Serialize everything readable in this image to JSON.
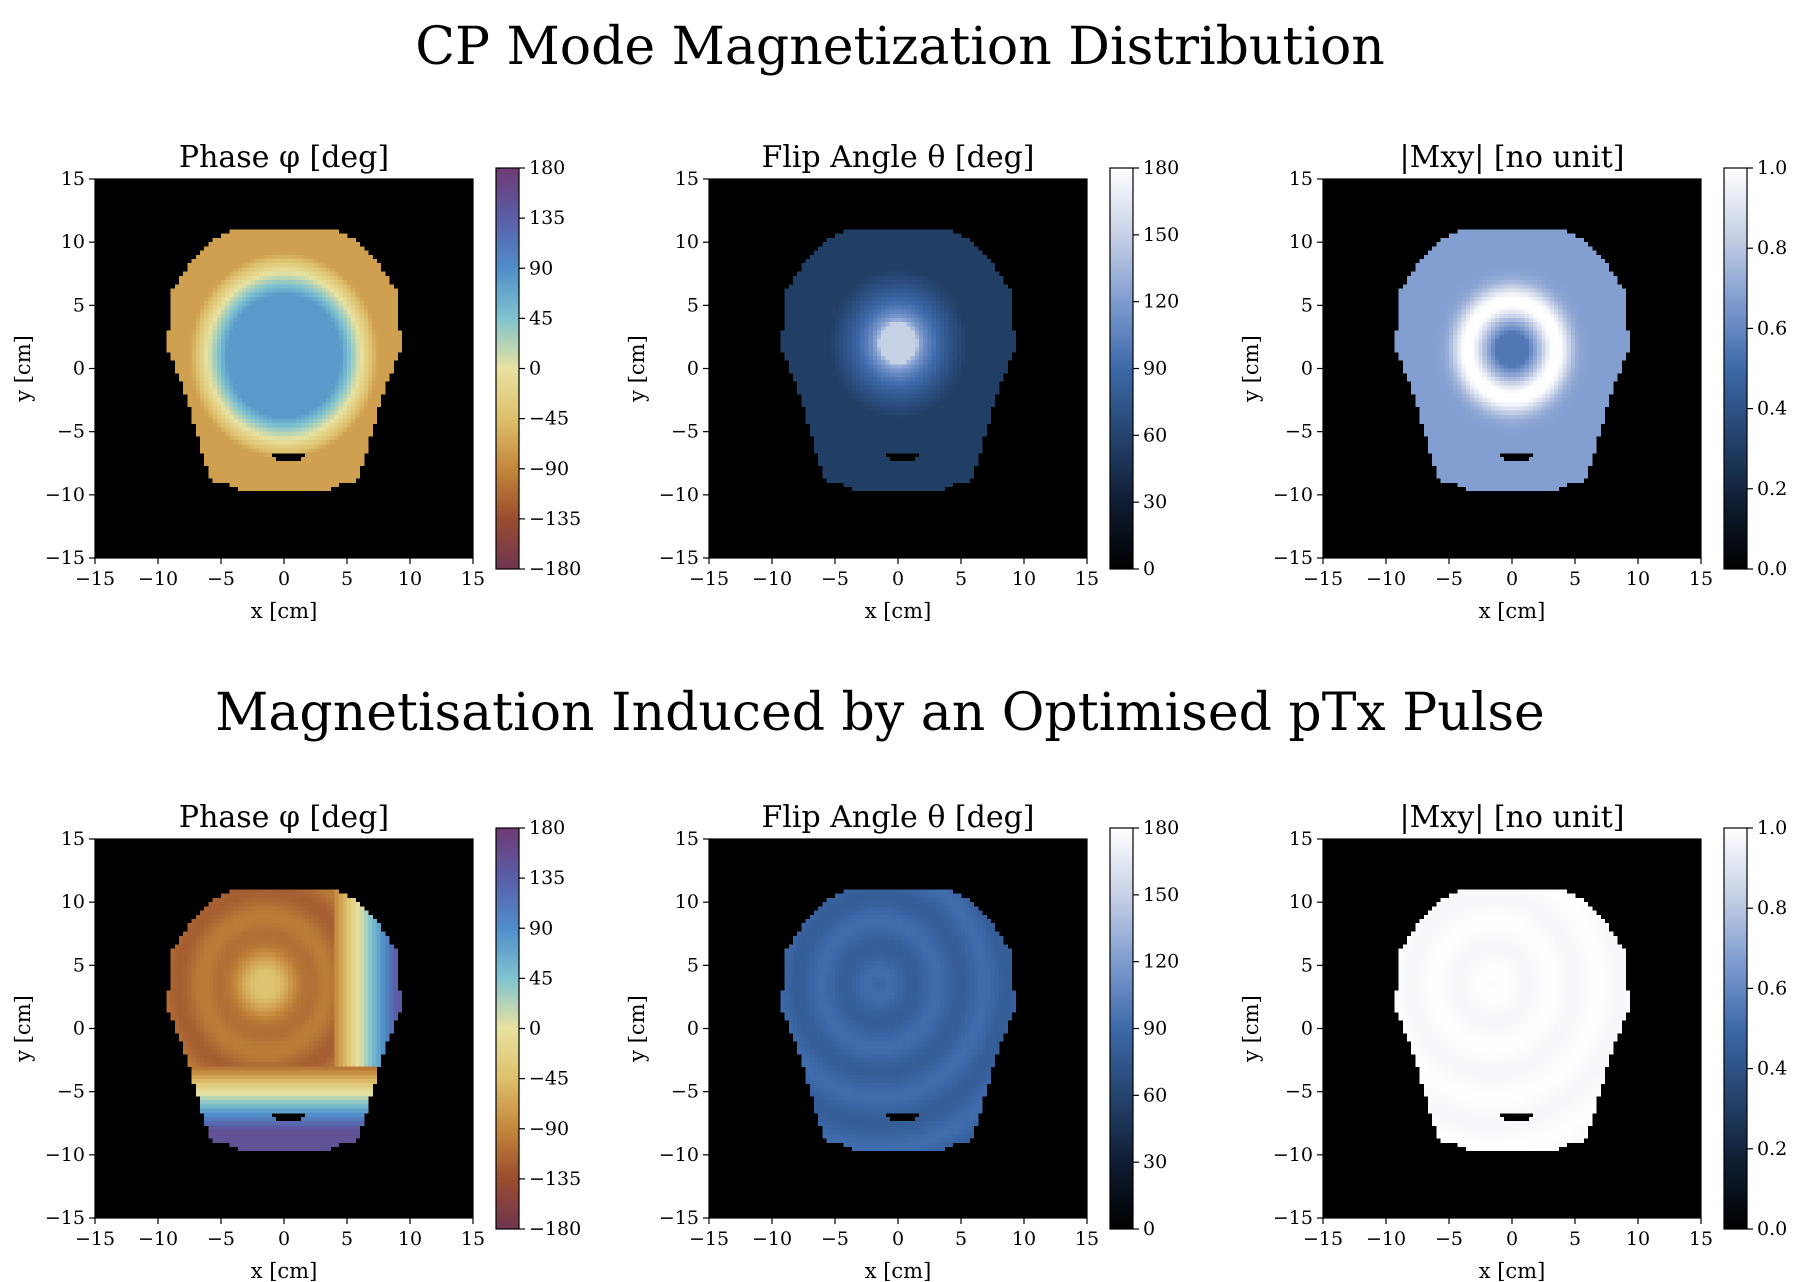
{
  "figure_titles": [
    "CP Mode Magnetization Distribution",
    "Magnetisation Induced by an Optimised pTx Pulse"
  ],
  "chart_data": [
    {
      "type": "heatmap",
      "row": 0,
      "title": "Phase φ [deg]",
      "xlabel": "x [cm]",
      "ylabel": "y [cm]",
      "xlim": [
        -15,
        15
      ],
      "ylim": [
        -15,
        15
      ],
      "xticks": [
        "−15",
        "−10",
        "−5",
        "0",
        "5",
        "10",
        "15"
      ],
      "yticks": [
        "15",
        "10",
        "5",
        "0",
        "−5",
        "−10",
        "−15"
      ],
      "colorbar": {
        "min": -180,
        "max": 180,
        "ticks": [
          "180",
          "135",
          "90",
          "45",
          "0",
          "−45",
          "−90",
          "−135",
          "−180"
        ],
        "colors": [
          "#6e3550",
          "#9a4d2e",
          "#c4873a",
          "#ddc06c",
          "#e8e2a0",
          "#7fc3cf",
          "#4f8ec9",
          "#5a5ea8",
          "#6e3a72"
        ]
      },
      "background_value": "black",
      "field": {
        "center": [
          0,
          1
        ],
        "core_value": 80,
        "edge_value": -70,
        "core_radius_cm": 4.5,
        "falloff_cm": 3.0
      }
    },
    {
      "type": "heatmap",
      "row": 0,
      "title": "Flip Angle θ [deg]",
      "xlabel": "x [cm]",
      "ylabel": "y [cm]",
      "xlim": [
        -15,
        15
      ],
      "ylim": [
        -15,
        15
      ],
      "xticks": [
        "−15",
        "−10",
        "−5",
        "0",
        "5",
        "10",
        "15"
      ],
      "yticks": [
        "15",
        "10",
        "5",
        "0",
        "−5",
        "−10",
        "−15"
      ],
      "colorbar": {
        "min": 0,
        "max": 180,
        "ticks": [
          "180",
          "150",
          "120",
          "90",
          "60",
          "30",
          "0"
        ],
        "colors": [
          "#000000",
          "#0f1d33",
          "#25446f",
          "#3d69aa",
          "#7f9cd0",
          "#c7d1e6",
          "#ffffff"
        ]
      },
      "background_value": "black",
      "field": {
        "center": [
          0,
          2
        ],
        "core_value": 150,
        "edge_value": 55,
        "core_radius_cm": 1.5,
        "falloff_cm": 4.0
      }
    },
    {
      "type": "heatmap",
      "row": 0,
      "title": "|Mxy| [no unit]",
      "xlabel": "x [cm]",
      "ylabel": "y [cm]",
      "xlim": [
        -15,
        15
      ],
      "ylim": [
        -15,
        15
      ],
      "xticks": [
        "−15",
        "−10",
        "−5",
        "0",
        "5",
        "10",
        "15"
      ],
      "yticks": [
        "15",
        "10",
        "5",
        "0",
        "−5",
        "−10",
        "−15"
      ],
      "colorbar": {
        "min": 0.0,
        "max": 1.0,
        "ticks": [
          "1.0",
          "0.8",
          "0.6",
          "0.4",
          "0.2",
          "0.0"
        ],
        "colors": [
          "#000000",
          "#0f1d33",
          "#25446f",
          "#3d69aa",
          "#7f9cd0",
          "#c7d1e6",
          "#ffffff"
        ]
      },
      "background_value": "black",
      "field": {
        "center": [
          0,
          1.5
        ],
        "core_value": 0.45,
        "ring_value": 1.0,
        "ring_radius_cm": 3.5,
        "edge_value": 0.75
      }
    },
    {
      "type": "heatmap",
      "row": 1,
      "title": "Phase φ [deg]",
      "xlabel": "x [cm]",
      "ylabel": "y [cm]",
      "xlim": [
        -15,
        15
      ],
      "ylim": [
        -15,
        15
      ],
      "xticks": [
        "−15",
        "−10",
        "−5",
        "0",
        "5",
        "10",
        "15"
      ],
      "yticks": [
        "15",
        "10",
        "5",
        "0",
        "−5",
        "−10",
        "−15"
      ],
      "colorbar": {
        "min": -180,
        "max": 180,
        "ticks": [
          "180",
          "135",
          "90",
          "45",
          "0",
          "−45",
          "−90",
          "−135",
          "−180"
        ],
        "colors": [
          "#6e3550",
          "#9a4d2e",
          "#c4873a",
          "#ddc06c",
          "#e8e2a0",
          "#7fc3cf",
          "#4f8ec9",
          "#5a5ea8",
          "#6e3a72"
        ]
      },
      "background_value": "black",
      "field": {
        "center": [
          -1.5,
          3.5
        ],
        "core_value": -40,
        "edge_value": -110,
        "lower_value": 140
      }
    },
    {
      "type": "heatmap",
      "row": 1,
      "title": "Flip Angle θ [deg]",
      "xlabel": "x [cm]",
      "ylabel": "y [cm]",
      "xlim": [
        -15,
        15
      ],
      "ylim": [
        -15,
        15
      ],
      "xticks": [
        "−15",
        "−10",
        "−5",
        "0",
        "5",
        "10",
        "15"
      ],
      "yticks": [
        "15",
        "10",
        "5",
        "0",
        "−5",
        "−10",
        "−15"
      ],
      "colorbar": {
        "min": 0,
        "max": 180,
        "ticks": [
          "180",
          "150",
          "120",
          "90",
          "60",
          "30",
          "0"
        ],
        "colors": [
          "#000000",
          "#0f1d33",
          "#25446f",
          "#3d69aa",
          "#7f9cd0",
          "#c7d1e6",
          "#ffffff"
        ]
      },
      "background_value": "black",
      "field": {
        "center": [
          -1.5,
          3.5
        ],
        "core_value": 88,
        "edge_value": 92
      }
    },
    {
      "type": "heatmap",
      "row": 1,
      "title": "|Mxy| [no unit]",
      "xlabel": "x [cm]",
      "ylabel": "y [cm]",
      "xlim": [
        -15,
        15
      ],
      "ylim": [
        -15,
        15
      ],
      "xticks": [
        "−15",
        "−10",
        "−5",
        "0",
        "5",
        "10",
        "15"
      ],
      "yticks": [
        "15",
        "10",
        "5",
        "0",
        "−5",
        "−10",
        "−15"
      ],
      "colorbar": {
        "min": 0.0,
        "max": 1.0,
        "ticks": [
          "1.0",
          "0.8",
          "0.6",
          "0.4",
          "0.2",
          "0.0"
        ],
        "colors": [
          "#000000",
          "#0f1d33",
          "#25446f",
          "#3d69aa",
          "#7f9cd0",
          "#c7d1e6",
          "#ffffff"
        ]
      },
      "background_value": "black",
      "field": {
        "center": [
          -1.5,
          3.5
        ],
        "core_value": 0.98,
        "edge_value": 1.0
      }
    }
  ]
}
